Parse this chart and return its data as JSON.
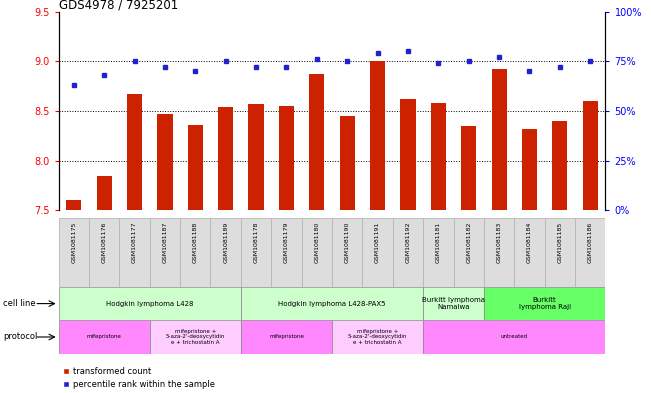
{
  "title": "GDS4978 / 7925201",
  "samples": [
    "GSM1081175",
    "GSM1081176",
    "GSM1081177",
    "GSM1081187",
    "GSM1081188",
    "GSM1081189",
    "GSM1081178",
    "GSM1081179",
    "GSM1081180",
    "GSM1081190",
    "GSM1081191",
    "GSM1081192",
    "GSM1081181",
    "GSM1081182",
    "GSM1081183",
    "GSM1081184",
    "GSM1081185",
    "GSM1081186"
  ],
  "bar_values": [
    7.6,
    7.85,
    8.67,
    8.47,
    8.36,
    8.54,
    8.57,
    8.55,
    8.87,
    8.45,
    9.0,
    8.62,
    8.58,
    8.35,
    8.92,
    8.32,
    8.4,
    8.6
  ],
  "blue_values": [
    63,
    68,
    75,
    72,
    70,
    75,
    72,
    72,
    76,
    75,
    79,
    80,
    74,
    75,
    77,
    70,
    72,
    75
  ],
  "ylim_left": [
    7.5,
    9.5
  ],
  "ylim_right": [
    0,
    100
  ],
  "yticks_left": [
    7.5,
    8.0,
    8.5,
    9.0,
    9.5
  ],
  "yticks_right": [
    0,
    25,
    50,
    75,
    100
  ],
  "ytick_labels_right": [
    "0%",
    "25%",
    "50%",
    "75%",
    "100%"
  ],
  "bar_color": "#cc2200",
  "blue_color": "#2222cc",
  "cell_line_groups": [
    {
      "label": "Hodgkin lymphoma L428",
      "start": 0,
      "end": 5,
      "color": "#ccffcc"
    },
    {
      "label": "Hodgkin lymphoma L428-PAX5",
      "start": 6,
      "end": 11,
      "color": "#ccffcc"
    },
    {
      "label": "Burkitt lymphoma\nNamalwa",
      "start": 12,
      "end": 13,
      "color": "#ccffcc"
    },
    {
      "label": "Burkitt\nlymphoma Raji",
      "start": 14,
      "end": 17,
      "color": "#66ff66"
    }
  ],
  "protocol_groups": [
    {
      "label": "mifepristone",
      "start": 0,
      "end": 2,
      "color": "#ff88ff"
    },
    {
      "label": "mifepristone +\n5-aza-2'-deoxycytidin\ne + trichostatin A",
      "start": 3,
      "end": 5,
      "color": "#ffccff"
    },
    {
      "label": "mifepristone",
      "start": 6,
      "end": 8,
      "color": "#ff88ff"
    },
    {
      "label": "mifepristone +\n5-aza-2'-deoxycytidin\ne + trichostatin A",
      "start": 9,
      "end": 11,
      "color": "#ffccff"
    },
    {
      "label": "untreated",
      "start": 12,
      "end": 17,
      "color": "#ff88ff"
    }
  ],
  "legend_red": "transformed count",
  "legend_blue": "percentile rank within the sample",
  "label_cell_line": "cell line",
  "label_protocol": "protocol"
}
